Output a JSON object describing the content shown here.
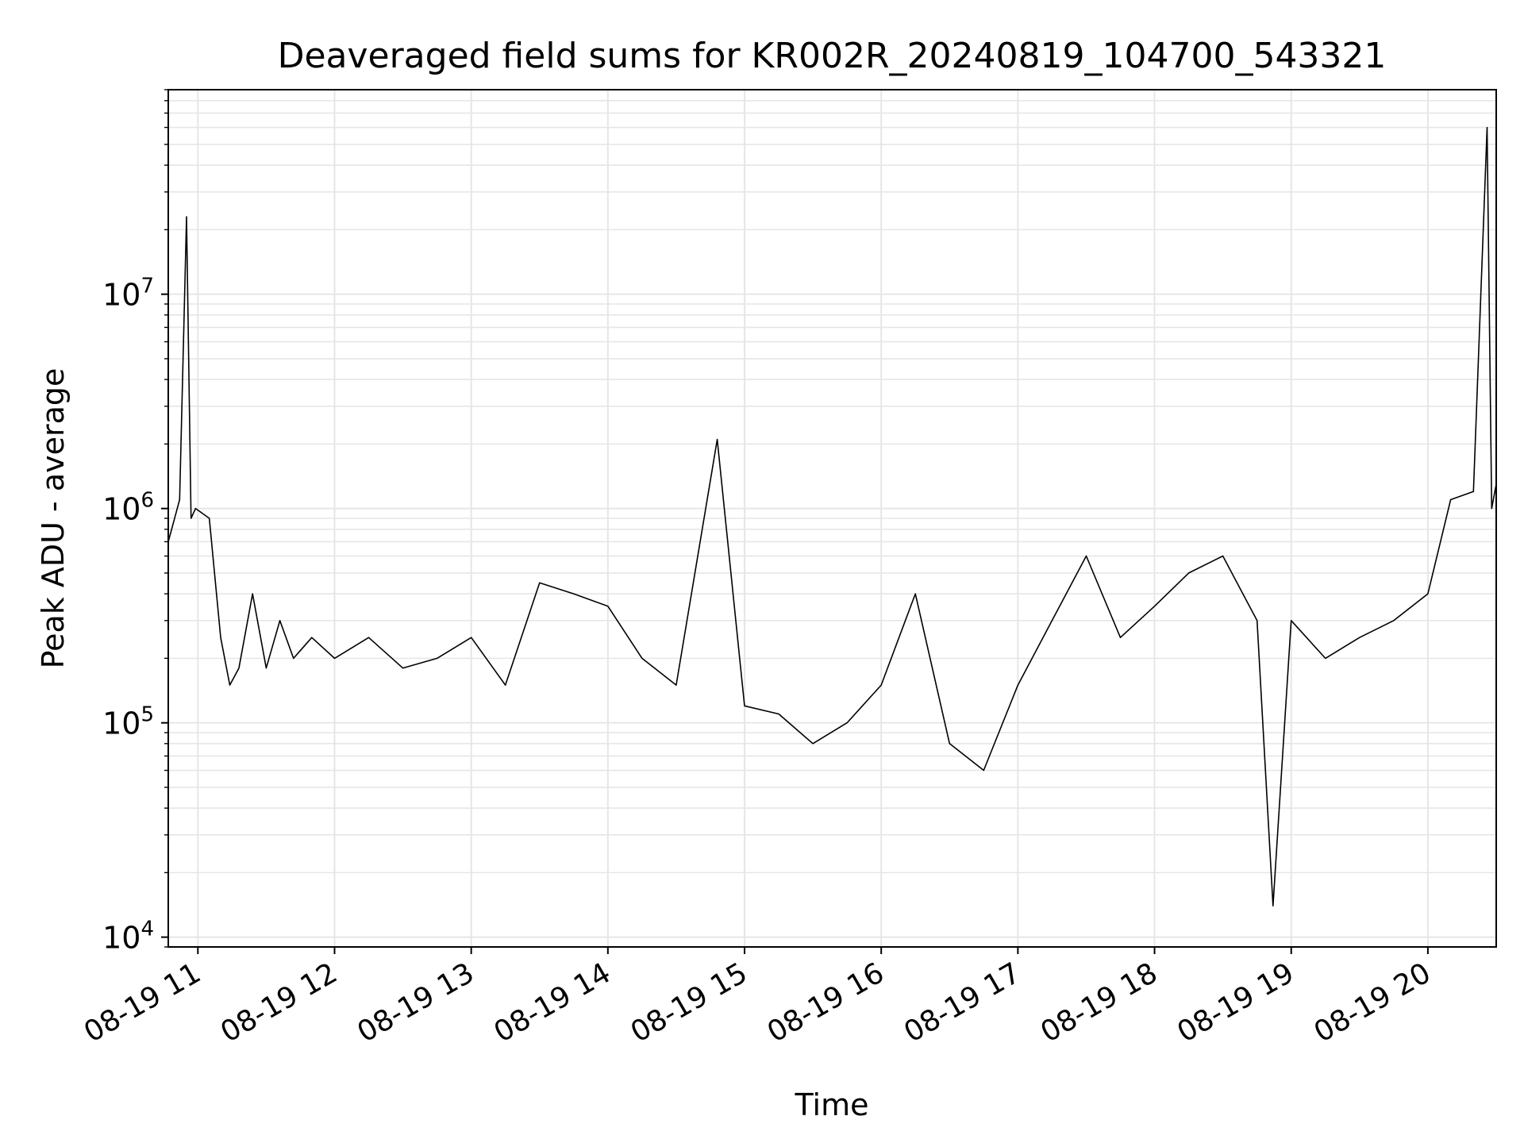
{
  "chart_data": {
    "type": "line",
    "title": "Deaveraged field sums for KR002R_20240819_104700_543321",
    "xlabel": "Time",
    "ylabel": "Peak ADU - average",
    "x_tick_labels": [
      "08-19 11",
      "08-19 12",
      "08-19 13",
      "08-19 14",
      "08-19 15",
      "08-19 16",
      "08-19 17",
      "08-19 18",
      "08-19 19",
      "08-19 20"
    ],
    "x_tick_values": [
      "2024-08-19T11:00",
      "2024-08-19T12:00",
      "2024-08-19T13:00",
      "2024-08-19T14:00",
      "2024-08-19T15:00",
      "2024-08-19T16:00",
      "2024-08-19T17:00",
      "2024-08-19T18:00",
      "2024-08-19T19:00",
      "2024-08-19T20:00"
    ],
    "xlim": [
      "2024-08-19T10:47",
      "2024-08-19T20:30"
    ],
    "y_tick_labels": [
      {
        "base": "10",
        "exp": "4",
        "value": 10000
      },
      {
        "base": "10",
        "exp": "5",
        "value": 100000
      },
      {
        "base": "10",
        "exp": "6",
        "value": 1000000
      },
      {
        "base": "10",
        "exp": "7",
        "value": 10000000
      }
    ],
    "ylim": [
      9000,
      90000000
    ],
    "yscale": "log",
    "grid": true,
    "line_color": "#000000",
    "grid_color": "#e6e6e6",
    "series": [
      {
        "x": [
          "2024-08-19T10:47",
          "2024-08-19T10:52",
          "2024-08-19T10:55",
          "2024-08-19T10:57",
          "2024-08-19T10:59",
          "2024-08-19T11:05",
          "2024-08-19T11:10",
          "2024-08-19T11:14",
          "2024-08-19T11:18",
          "2024-08-19T11:24",
          "2024-08-19T11:30",
          "2024-08-19T11:36",
          "2024-08-19T11:42",
          "2024-08-19T11:50",
          "2024-08-19T12:00",
          "2024-08-19T12:15",
          "2024-08-19T12:30",
          "2024-08-19T12:45",
          "2024-08-19T13:00",
          "2024-08-19T13:15",
          "2024-08-19T13:30",
          "2024-08-19T13:45",
          "2024-08-19T14:00",
          "2024-08-19T14:15",
          "2024-08-19T14:30",
          "2024-08-19T14:48",
          "2024-08-19T15:00",
          "2024-08-19T15:15",
          "2024-08-19T15:30",
          "2024-08-19T15:45",
          "2024-08-19T16:00",
          "2024-08-19T16:15",
          "2024-08-19T16:30",
          "2024-08-19T16:45",
          "2024-08-19T17:00",
          "2024-08-19T17:15",
          "2024-08-19T17:30",
          "2024-08-19T17:45",
          "2024-08-19T18:00",
          "2024-08-19T18:15",
          "2024-08-19T18:30",
          "2024-08-19T18:45",
          "2024-08-19T18:52",
          "2024-08-19T19:00",
          "2024-08-19T19:15",
          "2024-08-19T19:30",
          "2024-08-19T19:45",
          "2024-08-19T20:00",
          "2024-08-19T20:10",
          "2024-08-19T20:20",
          "2024-08-19T20:26",
          "2024-08-19T20:28",
          "2024-08-19T20:30"
        ],
        "y": [
          700000,
          1100000,
          23000000,
          900000,
          1000000,
          900000,
          250000,
          150000,
          180000,
          400000,
          180000,
          300000,
          200000,
          250000,
          200000,
          250000,
          180000,
          200000,
          250000,
          150000,
          450000,
          400000,
          350000,
          200000,
          150000,
          2100000,
          120000,
          110000,
          80000,
          100000,
          150000,
          400000,
          80000,
          60000,
          150000,
          300000,
          600000,
          250000,
          350000,
          500000,
          600000,
          300000,
          14000,
          300000,
          200000,
          250000,
          300000,
          400000,
          1100000,
          1200000,
          60000000,
          1000000,
          1300000
        ]
      }
    ]
  }
}
